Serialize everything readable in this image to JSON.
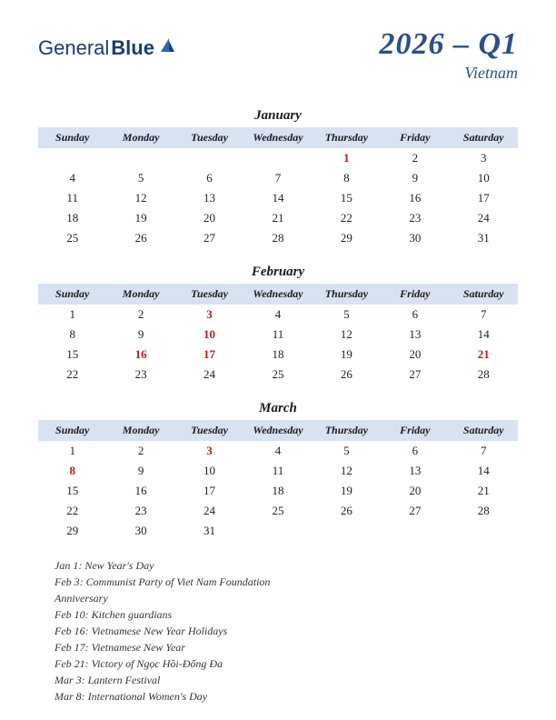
{
  "logo": {
    "part1": "General",
    "part2": "Blue"
  },
  "title": {
    "main": "2026 – Q1",
    "sub": "Vietnam"
  },
  "colors": {
    "header_bg": "#d8e2f2",
    "accent": "#2a4f8a",
    "holiday": "#c21818",
    "text": "#222222",
    "background": "#ffffff"
  },
  "day_headers": [
    "Sunday",
    "Monday",
    "Tuesday",
    "Wednesday",
    "Thursday",
    "Friday",
    "Saturday"
  ],
  "months": [
    {
      "name": "January",
      "weeks": [
        [
          "",
          "",
          "",
          "",
          "1",
          "2",
          "3"
        ],
        [
          "4",
          "5",
          "6",
          "7",
          "8",
          "9",
          "10"
        ],
        [
          "11",
          "12",
          "13",
          "14",
          "15",
          "16",
          "17"
        ],
        [
          "18",
          "19",
          "20",
          "21",
          "22",
          "23",
          "24"
        ],
        [
          "25",
          "26",
          "27",
          "28",
          "29",
          "30",
          "31"
        ]
      ],
      "holidays": [
        "1"
      ]
    },
    {
      "name": "February",
      "weeks": [
        [
          "1",
          "2",
          "3",
          "4",
          "5",
          "6",
          "7"
        ],
        [
          "8",
          "9",
          "10",
          "11",
          "12",
          "13",
          "14"
        ],
        [
          "15",
          "16",
          "17",
          "18",
          "19",
          "20",
          "21"
        ],
        [
          "22",
          "23",
          "24",
          "25",
          "26",
          "27",
          "28"
        ]
      ],
      "holidays": [
        "3",
        "10",
        "16",
        "17",
        "21"
      ]
    },
    {
      "name": "March",
      "weeks": [
        [
          "1",
          "2",
          "3",
          "4",
          "5",
          "6",
          "7"
        ],
        [
          "8",
          "9",
          "10",
          "11",
          "12",
          "13",
          "14"
        ],
        [
          "15",
          "16",
          "17",
          "18",
          "19",
          "20",
          "21"
        ],
        [
          "22",
          "23",
          "24",
          "25",
          "26",
          "27",
          "28"
        ],
        [
          "29",
          "30",
          "31",
          "",
          "",
          "",
          ""
        ]
      ],
      "holidays": [
        "3",
        "8"
      ]
    }
  ],
  "holiday_list": [
    "Jan 1: New Year's Day",
    "Feb 3: Communist Party of Viet Nam Foundation Anniversary",
    "Feb 10: Kitchen guardians",
    "Feb 16: Vietnamese New Year Holidays",
    "Feb 17: Vietnamese New Year",
    "Feb 21: Victory of Ngọc Hồi-Đống Đa",
    "Mar 3: Lantern Festival",
    "Mar 8: International Women's Day"
  ]
}
